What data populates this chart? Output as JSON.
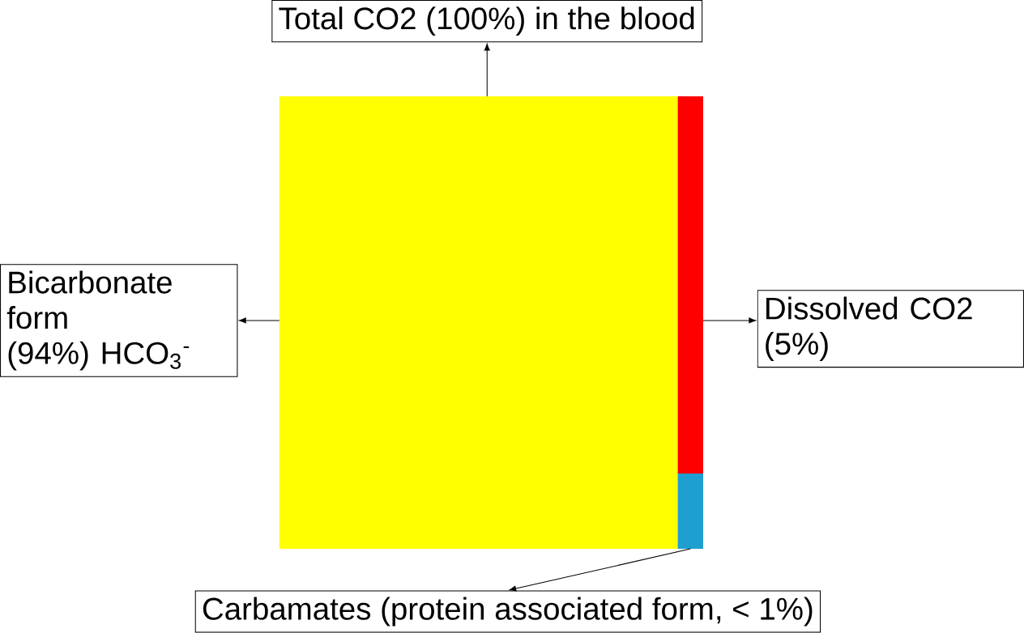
{
  "chart_data": {
    "type": "other",
    "title": "Total CO2 (100%) in the blood",
    "categories": [
      "Bicarbonate form",
      "Dissolved CO2",
      "Carbamates (protein associated form"
    ],
    "values": [
      94,
      5,
      1
    ],
    "value_labels": [
      "(94%) HCO$_{3}$$^{-}$",
      "(5%)",
      ", < 1%)"
    ],
    "colors": [
      "#ffff00",
      "#ff0000",
      "#1f9fd0"
    ]
  }
}
